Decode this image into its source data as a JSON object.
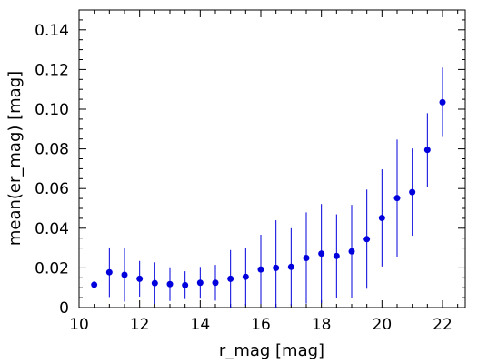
{
  "chart_data": {
    "type": "scatter",
    "title": "",
    "xlabel": "r_mag [mag]",
    "ylabel": "mean(er_mag) [mag]",
    "xlim": [
      10,
      22.75
    ],
    "ylim": [
      0,
      0.15
    ],
    "grid": false,
    "legend": "none",
    "colors": {
      "marker": "#0000dd",
      "errorbar": "#0000dd",
      "axis": "#000000"
    },
    "x_ticks": [
      "10",
      "12",
      "14",
      "16",
      "18",
      "20",
      "22"
    ],
    "x_tick_values": [
      10,
      12,
      14,
      16,
      18,
      20,
      22
    ],
    "x_minor_step": 0.5,
    "y_ticks": [
      "0",
      "0.02",
      "0.04",
      "0.06",
      "0.08",
      "0.10",
      "0.12",
      "0.14"
    ],
    "y_tick_values": [
      0,
      0.02,
      0.04,
      0.06,
      0.08,
      0.1,
      0.12,
      0.14
    ],
    "y_minor_step": 0.005,
    "series": [
      {
        "x": [
          10.5,
          11.0,
          11.5,
          12.0,
          12.5,
          13.0,
          13.5,
          14.0,
          14.5,
          15.0,
          15.5,
          16.0,
          16.5,
          17.0,
          17.5,
          18.0,
          18.5,
          19.0,
          19.5,
          20.0,
          20.5,
          21.0,
          21.5,
          22.0
        ],
        "y": [
          0.0115,
          0.0178,
          0.0165,
          0.0145,
          0.0123,
          0.0118,
          0.0113,
          0.0125,
          0.0125,
          0.0145,
          0.0155,
          0.0192,
          0.02,
          0.0205,
          0.025,
          0.0272,
          0.026,
          0.0283,
          0.0345,
          0.0452,
          0.0552,
          0.0582,
          0.0795,
          0.1035
        ],
        "y_error": [
          0.0,
          0.0125,
          0.0135,
          0.009,
          0.0105,
          0.0085,
          0.007,
          0.008,
          0.009,
          0.0145,
          0.0145,
          0.0175,
          0.024,
          0.0195,
          0.023,
          0.025,
          0.021,
          0.0235,
          0.025,
          0.0245,
          0.0295,
          0.022,
          0.0185,
          0.0175
        ]
      }
    ]
  }
}
